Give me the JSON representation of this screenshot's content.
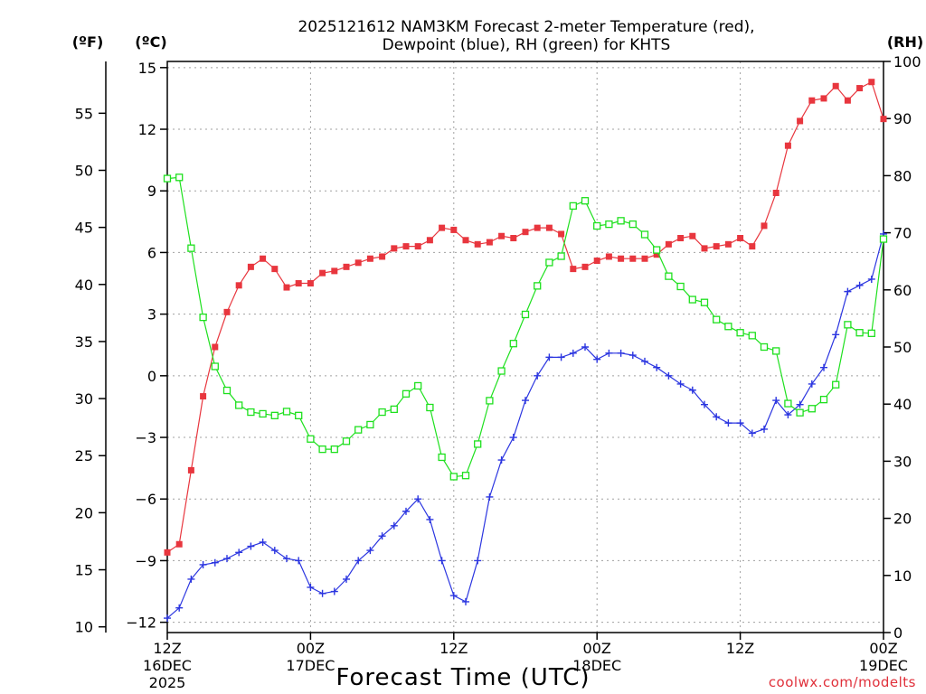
{
  "chart_data": {
    "type": "line",
    "title_line1": "2025121612 NAM3KM Forecast 2-meter Temperature (red),",
    "title_line2": "Dewpoint (blue), RH (green) for KHTS",
    "xlabel": "Forecast Time (UTC)",
    "credit": "coolwx.com/modelts",
    "units": {
      "fahrenheit": "(ºF)",
      "celsius": "(ºC)",
      "rh": "(RH)"
    },
    "colors": {
      "temperature": "#e8363e",
      "dewpoint": "#2b35e0",
      "rh": "#1ee01e",
      "grid": "#a0a0a0"
    },
    "x_range_hours": [
      0,
      60
    ],
    "celsius_range": [
      -12.5,
      15.3
    ],
    "rh_range": [
      0,
      100
    ],
    "fahrenheit_range": [
      9.5,
      59.54
    ],
    "x_ticks": [
      {
        "hour": 0,
        "line1": "12Z",
        "line2": "16DEC",
        "line3": "2025"
      },
      {
        "hour": 12,
        "line1": "00Z",
        "line2": "17DEC",
        "line3": ""
      },
      {
        "hour": 24,
        "line1": "12Z",
        "line2": "",
        "line3": ""
      },
      {
        "hour": 36,
        "line1": "00Z",
        "line2": "18DEC",
        "line3": ""
      },
      {
        "hour": 48,
        "line1": "12Z",
        "line2": "",
        "line3": ""
      },
      {
        "hour": 60,
        "line1": "00Z",
        "line2": "19DEC",
        "line3": ""
      }
    ],
    "celsius_ticks": [
      "15",
      "12",
      "9",
      "6",
      "3",
      "0",
      "−3",
      "−6",
      "−9",
      "−12"
    ],
    "fahrenheit_ticks": [
      "55",
      "50",
      "45",
      "40",
      "35",
      "30",
      "25",
      "20",
      "15",
      "10"
    ],
    "rh_ticks": [
      "100",
      "90",
      "80",
      "70",
      "60",
      "50",
      "40",
      "30",
      "20",
      "10",
      "0"
    ],
    "series": [
      {
        "name": "2-meter Temperature (°C)",
        "color": "#e8363e",
        "marker": "filled-square",
        "hours": [
          0,
          1,
          2,
          3,
          4,
          5,
          6,
          7,
          8,
          9,
          10,
          11,
          12,
          13,
          14,
          15,
          16,
          17,
          18,
          19,
          20,
          21,
          22,
          23,
          24,
          25,
          26,
          27,
          28,
          29,
          30,
          31,
          32,
          33,
          34,
          35,
          36,
          37,
          38,
          39,
          40,
          41,
          42,
          43,
          44,
          45,
          46,
          47,
          48,
          49,
          50,
          51,
          52,
          53,
          54,
          55,
          56,
          57,
          58,
          59,
          60
        ],
        "values": [
          -8.6,
          -8.2,
          -4.6,
          -1.0,
          1.4,
          3.1,
          4.4,
          5.3,
          5.7,
          5.2,
          4.3,
          4.5,
          4.5,
          5.0,
          5.1,
          5.3,
          5.5,
          5.7,
          5.8,
          6.2,
          6.3,
          6.3,
          6.6,
          7.2,
          7.1,
          6.6,
          6.4,
          6.5,
          6.8,
          6.7,
          7.0,
          7.2,
          7.2,
          6.9,
          5.2,
          5.3,
          5.6,
          5.8,
          5.7,
          5.7,
          5.7,
          5.9,
          6.4,
          6.7,
          6.8,
          6.2,
          6.3,
          6.4,
          6.7,
          6.3,
          7.3,
          8.9,
          11.2,
          12.4,
          13.4,
          13.5,
          14.1,
          13.4,
          14.0,
          14.3,
          12.5
        ]
      },
      {
        "name": "Dewpoint (°C)",
        "color": "#2b35e0",
        "marker": "plus",
        "hours": [
          0,
          1,
          2,
          3,
          4,
          5,
          6,
          7,
          8,
          9,
          10,
          11,
          12,
          13,
          14,
          15,
          16,
          17,
          18,
          19,
          20,
          21,
          22,
          23,
          24,
          25,
          26,
          27,
          28,
          29,
          30,
          31,
          32,
          33,
          34,
          35,
          36,
          37,
          38,
          39,
          40,
          41,
          42,
          43,
          44,
          45,
          46,
          47,
          48,
          49,
          50,
          51,
          52,
          53,
          54,
          55,
          56,
          57,
          58,
          59,
          60
        ],
        "values": [
          -11.8,
          -11.3,
          -9.9,
          -9.2,
          -9.1,
          -8.9,
          -8.6,
          -8.3,
          -8.1,
          -8.5,
          -8.9,
          -9.0,
          -10.3,
          -10.6,
          -10.5,
          -9.9,
          -9.0,
          -8.5,
          -7.8,
          -7.3,
          -6.6,
          -6.0,
          -7.0,
          -9.0,
          -10.7,
          -11.0,
          -9.0,
          -5.9,
          -4.1,
          -3.0,
          -1.2,
          0.0,
          0.9,
          0.9,
          1.1,
          1.4,
          0.8,
          1.1,
          1.1,
          1.0,
          0.7,
          0.4,
          0.0,
          -0.4,
          -0.7,
          -1.4,
          -2.0,
          -2.3,
          -2.3,
          -2.8,
          -2.6,
          -1.2,
          -1.9,
          -1.4,
          -0.4,
          0.4,
          2.0,
          4.1,
          4.4,
          4.7,
          6.9
        ]
      },
      {
        "name": "RH (%)",
        "color": "#1ee01e",
        "marker": "open-square",
        "hours": [
          0,
          1,
          2,
          3,
          4,
          5,
          6,
          7,
          8,
          9,
          10,
          11,
          12,
          13,
          14,
          15,
          16,
          17,
          18,
          19,
          20,
          21,
          22,
          23,
          24,
          25,
          26,
          27,
          28,
          29,
          30,
          31,
          32,
          33,
          34,
          35,
          36,
          37,
          38,
          39,
          40,
          41,
          42,
          43,
          44,
          45,
          46,
          47,
          48,
          49,
          50,
          51,
          52,
          53,
          54,
          55,
          56,
          57,
          58,
          59,
          60
        ],
        "values": [
          79.5,
          79.7,
          67.3,
          55.2,
          46.6,
          42.4,
          39.8,
          38.6,
          38.3,
          38.0,
          38.7,
          38.0,
          33.9,
          32.1,
          32.1,
          33.5,
          35.5,
          36.4,
          38.6,
          39.1,
          41.8,
          43.2,
          39.4,
          30.7,
          27.3,
          27.5,
          33.0,
          40.6,
          45.8,
          50.6,
          55.7,
          60.7,
          64.8,
          65.9,
          74.7,
          75.6,
          71.2,
          71.5,
          72.1,
          71.5,
          69.7,
          67.0,
          62.4,
          60.6,
          58.3,
          57.8,
          54.8,
          53.6,
          52.5,
          52.0,
          50.0,
          49.3,
          40.1,
          38.5,
          39.2,
          40.8,
          43.4,
          53.9,
          52.5,
          52.4,
          68.9
        ]
      }
    ]
  }
}
